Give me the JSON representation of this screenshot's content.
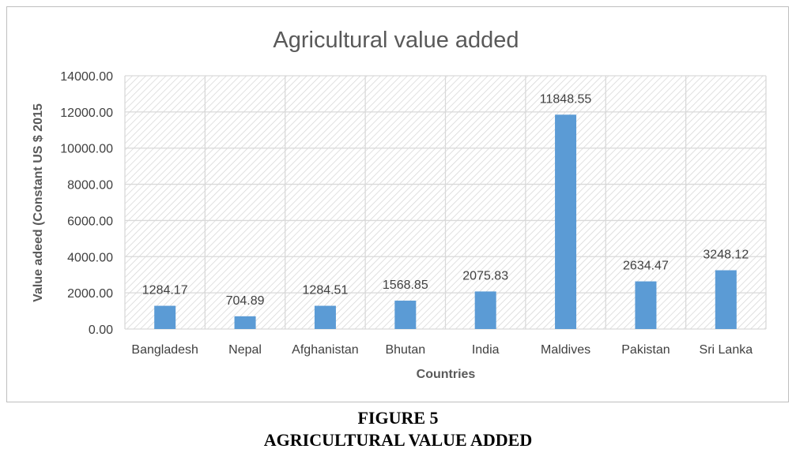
{
  "chart_data": {
    "type": "bar",
    "title": "Agricultural value added",
    "xlabel": "Countries",
    "ylabel": "Value adeed (Constant US $ 2015",
    "categories": [
      "Bangladesh",
      "Nepal",
      "Afghanistan",
      "Bhutan",
      "India",
      "Maldives",
      "Pakistan",
      "Sri Lanka"
    ],
    "values": [
      1284.17,
      704.89,
      1284.51,
      1568.85,
      2075.83,
      11848.55,
      2634.47,
      3248.12
    ],
    "data_labels": [
      "1284.17",
      "704.89",
      "1284.51",
      "1568.85",
      "2075.83",
      "11848.55",
      "2634.47",
      "3248.12"
    ],
    "y_ticks": [
      0,
      2000,
      4000,
      6000,
      8000,
      10000,
      12000,
      14000
    ],
    "y_tick_labels": [
      "0.00",
      "2000.00",
      "4000.00",
      "6000.00",
      "8000.00",
      "10000.00",
      "12000.00",
      "14000.00"
    ],
    "ylim": [
      0,
      14000
    ],
    "grid": true,
    "bar_color": "#5b9bd5",
    "legend": "none"
  },
  "figure": {
    "number": "FIGURE 5",
    "caption": "AGRICULTURAL VALUE ADDED"
  }
}
